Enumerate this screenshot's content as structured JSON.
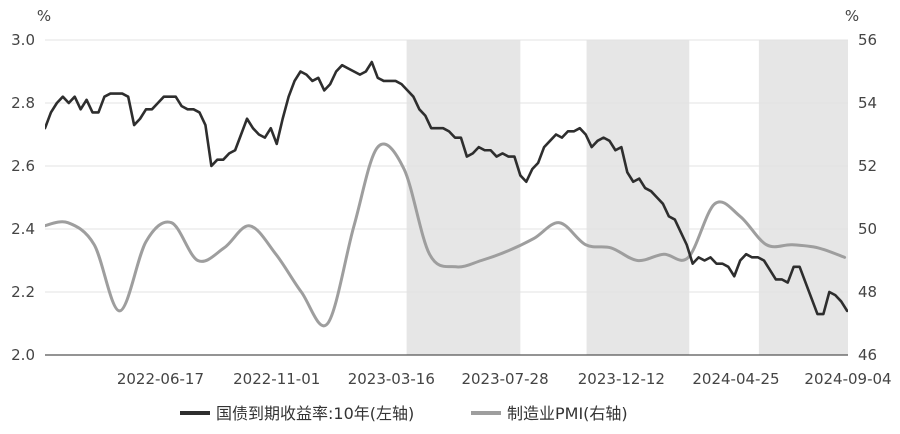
{
  "chart_data": {
    "type": "line",
    "title": "",
    "xlabel": "",
    "ylabel": "%",
    "ylabel_right": "%",
    "xlim": [
      "2022-02-01",
      "2024-09-04"
    ],
    "ylim": [
      2.0,
      3.0
    ],
    "ylim_right": [
      46,
      56
    ],
    "x_ticks": [
      "2022-06-17",
      "2022-11-01",
      "2023-03-16",
      "2023-07-28",
      "2023-12-12",
      "2024-04-25",
      "2024-09-04"
    ],
    "y_ticks": [
      "2.0",
      "2.2",
      "2.4",
      "2.6",
      "2.8",
      "3.0"
    ],
    "y_ticks_right": [
      "46",
      "48",
      "50",
      "52",
      "54",
      "56"
    ],
    "grid": "horizontal",
    "legend": "bottom-center",
    "shade_color": "#e6e6e6",
    "grid_color": "#e3e3e3",
    "shaded_regions": [
      {
        "start": "2023-04-03",
        "end": "2023-08-15"
      },
      {
        "start": "2023-11-01",
        "end": "2024-03-01"
      },
      {
        "start": "2024-05-22",
        "end": "2024-09-04"
      }
    ],
    "series": [
      {
        "name": "国债到期收益率:10年(左轴)",
        "axis": "left",
        "color": "#2e2e2e",
        "x": [
          "2022-02-01",
          "2022-02-08",
          "2022-02-15",
          "2022-02-22",
          "2022-03-01",
          "2022-03-08",
          "2022-03-15",
          "2022-03-22",
          "2022-03-29",
          "2022-04-05",
          "2022-04-12",
          "2022-04-19",
          "2022-04-26",
          "2022-05-03",
          "2022-05-10",
          "2022-05-17",
          "2022-05-24",
          "2022-05-31",
          "2022-06-07",
          "2022-06-14",
          "2022-06-21",
          "2022-06-28",
          "2022-07-05",
          "2022-07-12",
          "2022-07-19",
          "2022-07-26",
          "2022-08-02",
          "2022-08-09",
          "2022-08-16",
          "2022-08-23",
          "2022-08-30",
          "2022-09-06",
          "2022-09-13",
          "2022-09-20",
          "2022-09-27",
          "2022-10-04",
          "2022-10-11",
          "2022-10-18",
          "2022-10-25",
          "2022-11-01",
          "2022-11-08",
          "2022-11-15",
          "2022-11-22",
          "2022-11-29",
          "2022-12-06",
          "2022-12-13",
          "2022-12-20",
          "2022-12-27",
          "2023-01-03",
          "2023-01-10",
          "2023-01-17",
          "2023-01-24",
          "2023-01-31",
          "2023-02-07",
          "2023-02-14",
          "2023-02-21",
          "2023-02-28",
          "2023-03-07",
          "2023-03-14",
          "2023-03-21",
          "2023-03-28",
          "2023-04-04",
          "2023-04-11",
          "2023-04-18",
          "2023-04-25",
          "2023-05-02",
          "2023-05-09",
          "2023-05-16",
          "2023-05-23",
          "2023-05-30",
          "2023-06-06",
          "2023-06-13",
          "2023-06-20",
          "2023-06-27",
          "2023-07-04",
          "2023-07-11",
          "2023-07-18",
          "2023-07-25",
          "2023-08-01",
          "2023-08-08",
          "2023-08-15",
          "2023-08-22",
          "2023-08-29",
          "2023-09-05",
          "2023-09-12",
          "2023-09-19",
          "2023-09-26",
          "2023-10-03",
          "2023-10-10",
          "2023-10-17",
          "2023-10-24",
          "2023-10-31",
          "2023-11-07",
          "2023-11-14",
          "2023-11-21",
          "2023-11-28",
          "2023-12-05",
          "2023-12-12",
          "2023-12-19",
          "2023-12-26",
          "2024-01-02",
          "2024-01-09",
          "2024-01-16",
          "2024-01-23",
          "2024-01-30",
          "2024-02-06",
          "2024-02-13",
          "2024-02-20",
          "2024-02-27",
          "2024-03-05",
          "2024-03-12",
          "2024-03-19",
          "2024-03-26",
          "2024-04-02",
          "2024-04-09",
          "2024-04-16",
          "2024-04-23",
          "2024-04-30",
          "2024-05-07",
          "2024-05-14",
          "2024-05-21",
          "2024-05-28",
          "2024-06-04",
          "2024-06-11",
          "2024-06-18",
          "2024-06-25",
          "2024-07-02",
          "2024-07-09",
          "2024-07-16",
          "2024-07-23",
          "2024-07-30",
          "2024-08-06",
          "2024-08-13",
          "2024-08-20",
          "2024-08-27",
          "2024-09-03"
        ],
        "y": [
          2.72,
          2.77,
          2.8,
          2.82,
          2.8,
          2.82,
          2.78,
          2.81,
          2.77,
          2.77,
          2.82,
          2.83,
          2.83,
          2.83,
          2.82,
          2.73,
          2.75,
          2.78,
          2.78,
          2.8,
          2.82,
          2.82,
          2.82,
          2.79,
          2.78,
          2.78,
          2.77,
          2.73,
          2.6,
          2.62,
          2.62,
          2.64,
          2.65,
          2.7,
          2.75,
          2.72,
          2.7,
          2.69,
          2.72,
          2.67,
          2.75,
          2.82,
          2.87,
          2.9,
          2.89,
          2.87,
          2.88,
          2.84,
          2.86,
          2.9,
          2.92,
          2.91,
          2.9,
          2.89,
          2.9,
          2.93,
          2.88,
          2.87,
          2.87,
          2.87,
          2.86,
          2.84,
          2.82,
          2.78,
          2.76,
          2.72,
          2.72,
          2.72,
          2.71,
          2.69,
          2.69,
          2.63,
          2.64,
          2.66,
          2.65,
          2.65,
          2.63,
          2.64,
          2.63,
          2.63,
          2.57,
          2.55,
          2.59,
          2.61,
          2.66,
          2.68,
          2.7,
          2.69,
          2.71,
          2.71,
          2.72,
          2.7,
          2.66,
          2.68,
          2.69,
          2.68,
          2.65,
          2.66,
          2.58,
          2.55,
          2.56,
          2.53,
          2.52,
          2.5,
          2.48,
          2.44,
          2.43,
          2.39,
          2.35,
          2.29,
          2.31,
          2.3,
          2.31,
          2.29,
          2.29,
          2.28,
          2.25,
          2.3,
          2.32,
          2.31,
          2.31,
          2.3,
          2.27,
          2.24,
          2.24,
          2.23,
          2.28,
          2.28,
          2.23,
          2.18,
          2.13,
          2.13,
          2.2,
          2.19,
          2.17,
          2.14
        ]
      },
      {
        "name": "制造业PMI(右轴)",
        "axis": "right",
        "color": "#9e9e9e",
        "x": [
          "2022-01-31",
          "2022-02-28",
          "2022-03-31",
          "2022-04-30",
          "2022-05-31",
          "2022-06-30",
          "2022-07-31",
          "2022-08-31",
          "2022-09-30",
          "2022-10-31",
          "2022-11-30",
          "2022-12-31",
          "2023-01-31",
          "2023-02-28",
          "2023-03-31",
          "2023-04-30",
          "2023-05-31",
          "2023-06-30",
          "2023-07-31",
          "2023-08-31",
          "2023-09-30",
          "2023-10-31",
          "2023-11-30",
          "2023-12-31",
          "2024-01-31",
          "2024-02-29",
          "2024-03-31",
          "2024-04-30",
          "2024-05-31",
          "2024-06-30",
          "2024-07-31",
          "2024-08-31"
        ],
        "y": [
          50.1,
          50.2,
          49.5,
          47.4,
          49.6,
          50.2,
          49.0,
          49.4,
          50.1,
          49.2,
          48.0,
          47.0,
          50.1,
          52.6,
          51.9,
          49.2,
          48.8,
          49.0,
          49.3,
          49.7,
          50.2,
          49.5,
          49.4,
          49.0,
          49.2,
          49.1,
          50.8,
          50.4,
          49.5,
          49.5,
          49.4,
          49.1
        ]
      }
    ]
  }
}
